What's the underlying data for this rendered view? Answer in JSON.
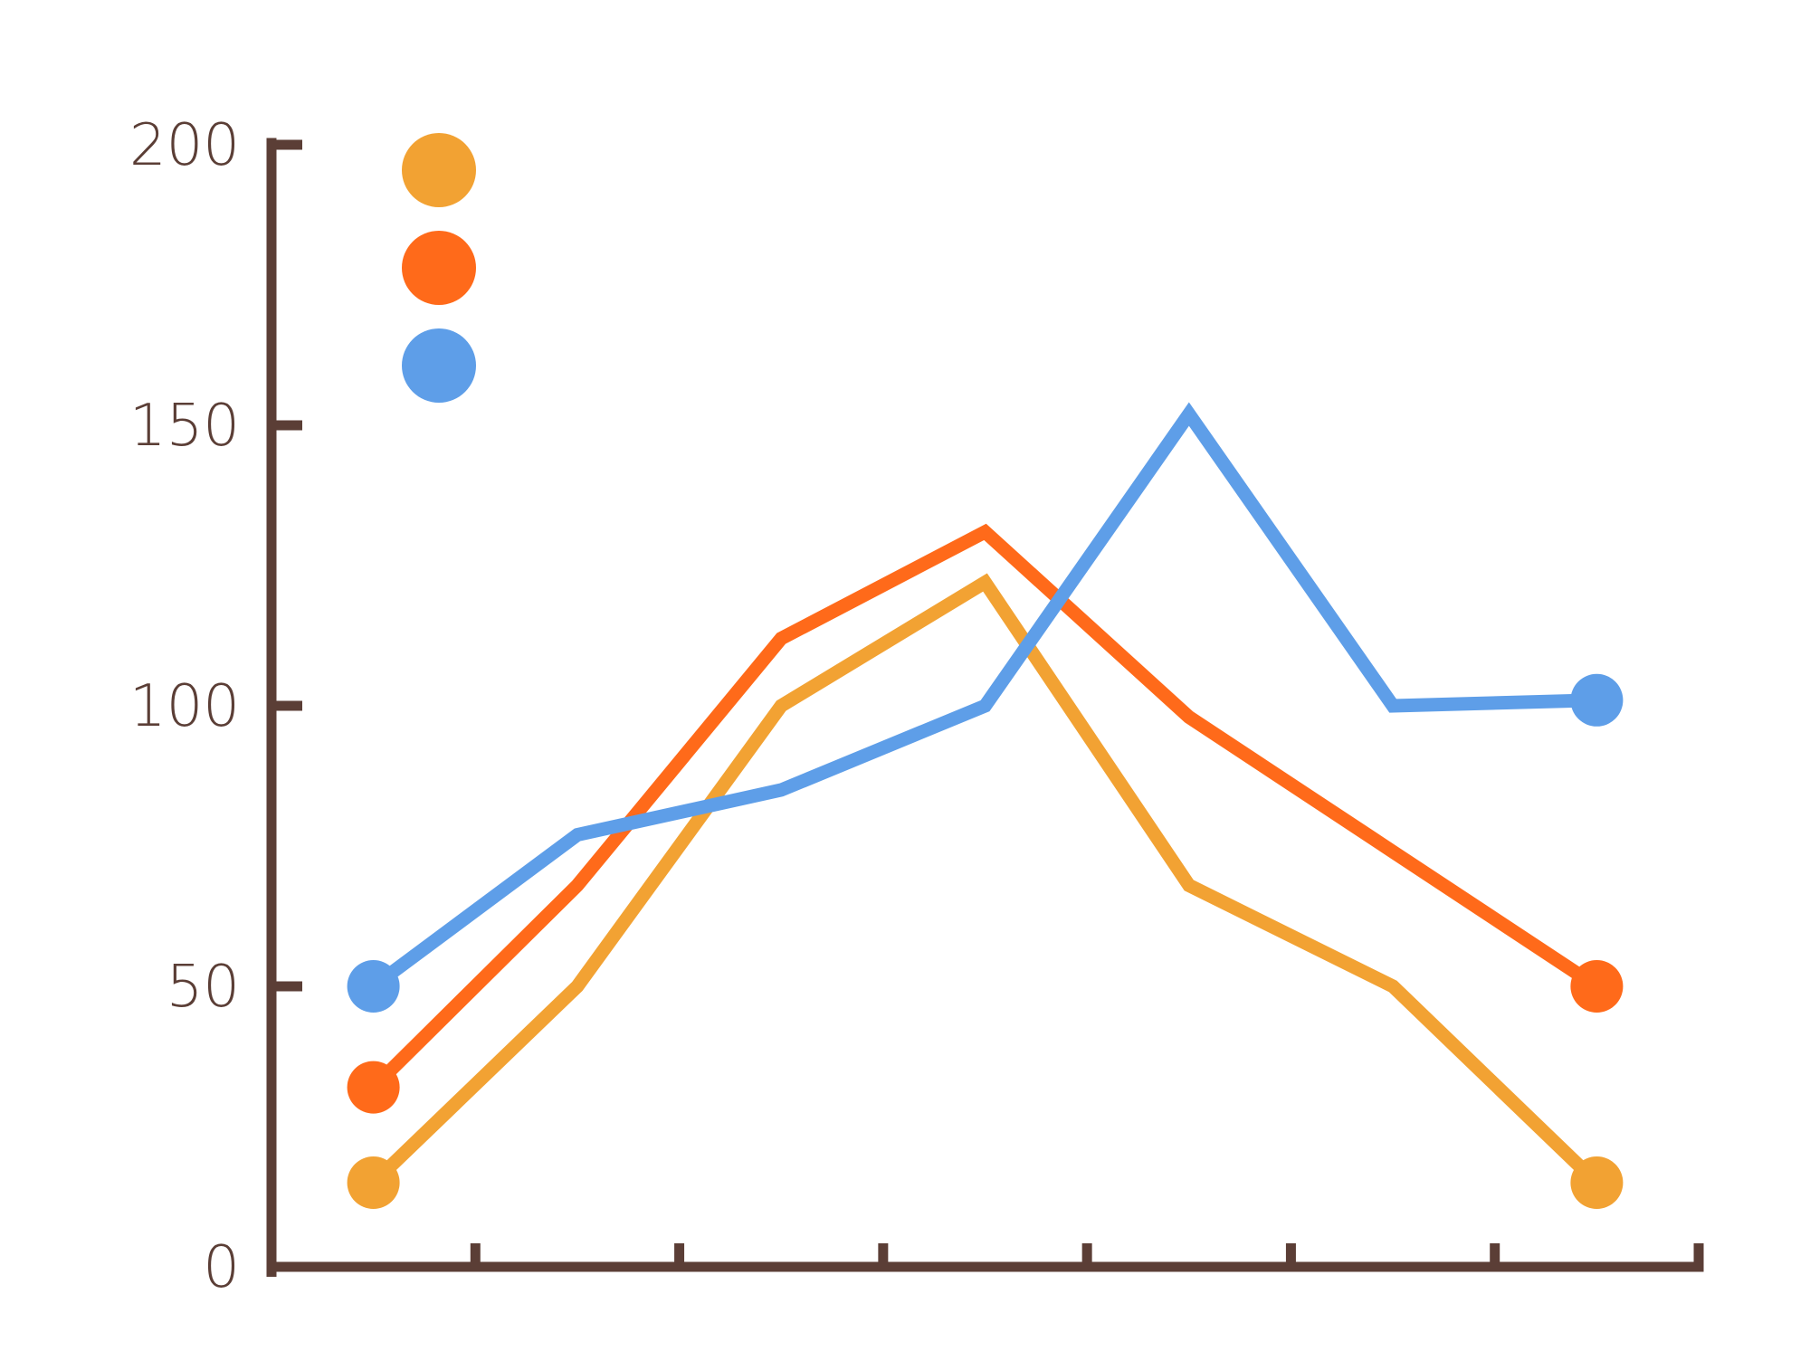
{
  "chart_data": {
    "type": "line",
    "title": "",
    "xlabel": "",
    "ylabel": "",
    "x": [
      1,
      2,
      3,
      4,
      5,
      6,
      7
    ],
    "xlim": [
      0.5,
      7.5
    ],
    "ylim": [
      0,
      200
    ],
    "yticks": [
      0,
      50,
      100,
      150,
      200
    ],
    "xticks": [
      1.5,
      2.5,
      3.5,
      4.5,
      5.5,
      6.5,
      7.5
    ],
    "grid": false,
    "legend_position": "top-left",
    "axis_color": "#5b3e36",
    "series": [
      {
        "color": "#f2a233",
        "values": [
          15,
          50,
          100,
          122,
          68,
          50,
          15
        ]
      },
      {
        "color": "#ff6a1a",
        "values": [
          32,
          68,
          112,
          131,
          98,
          74,
          50
        ]
      },
      {
        "color": "#5e9ee8",
        "values": [
          50,
          77,
          85,
          100,
          152,
          100,
          101
        ]
      }
    ]
  }
}
